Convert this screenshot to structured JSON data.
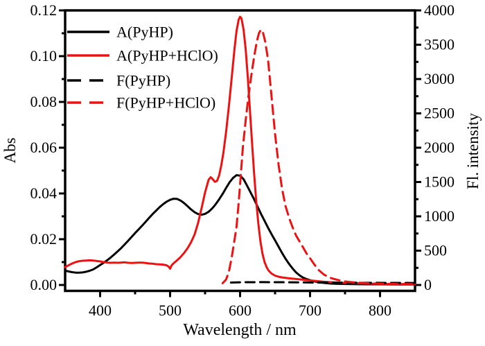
{
  "figure": {
    "background": "#ffffff"
  },
  "chart_data": {
    "type": "line",
    "title": "",
    "xlabel": "Wavelength / nm",
    "ylabel_left": "Abs",
    "ylabel_right": "Fl. intensity",
    "x_range": [
      350,
      850
    ],
    "y_left_range": [
      0,
      0.12
    ],
    "y_right_range": [
      0,
      4000
    ],
    "grid": false,
    "legend_position": "top-left",
    "frame": "full-box",
    "colors": {
      "black": "#000000",
      "red": "#ee1111"
    },
    "x_ticks": {
      "values": [
        400,
        500,
        600,
        700,
        800
      ],
      "labels": [
        "400",
        "500",
        "600",
        "700",
        "800"
      ],
      "minor": [
        450,
        550,
        650,
        750
      ]
    },
    "y_left_ticks": {
      "values": [
        0,
        0.02,
        0.04,
        0.06,
        0.08,
        0.1,
        0.12
      ],
      "labels": [
        "0.00",
        "0.02",
        "0.04",
        "0.06",
        "0.08",
        "0.10",
        "0.12"
      ],
      "minor": [
        0.01,
        0.03,
        0.05,
        0.07,
        0.09,
        0.11
      ]
    },
    "y_right_ticks": {
      "values": [
        0,
        500,
        1000,
        1500,
        2000,
        2500,
        3000,
        3500,
        4000
      ],
      "labels": [
        "0",
        "500",
        "1000",
        "1500",
        "2000",
        "2500",
        "3000",
        "3500",
        "4000"
      ],
      "minor": [
        250,
        750,
        1250,
        1750,
        2250,
        2750,
        3250,
        3750
      ]
    },
    "series": [
      {
        "name": "A(PyHP)",
        "axis": "left",
        "color": "#000000",
        "style": "solid",
        "points": [
          [
            350,
            0.0063
          ],
          [
            355,
            0.0059
          ],
          [
            360,
            0.0056
          ],
          [
            365,
            0.0054
          ],
          [
            370,
            0.0054
          ],
          [
            375,
            0.0055
          ],
          [
            380,
            0.0058
          ],
          [
            385,
            0.0062
          ],
          [
            390,
            0.0068
          ],
          [
            395,
            0.0077
          ],
          [
            400,
            0.0087
          ],
          [
            405,
            0.0097
          ],
          [
            410,
            0.0108
          ],
          [
            415,
            0.012
          ],
          [
            420,
            0.0133
          ],
          [
            425,
            0.0147
          ],
          [
            430,
            0.0161
          ],
          [
            435,
            0.0177
          ],
          [
            440,
            0.0193
          ],
          [
            445,
            0.021
          ],
          [
            450,
            0.0227
          ],
          [
            455,
            0.0243
          ],
          [
            460,
            0.0259
          ],
          [
            465,
            0.0276
          ],
          [
            470,
            0.0293
          ],
          [
            475,
            0.031
          ],
          [
            480,
            0.0325
          ],
          [
            485,
            0.034
          ],
          [
            490,
            0.0353
          ],
          [
            495,
            0.0364
          ],
          [
            500,
            0.0372
          ],
          [
            505,
            0.0377
          ],
          [
            510,
            0.0376
          ],
          [
            515,
            0.0369
          ],
          [
            520,
            0.0358
          ],
          [
            525,
            0.0344
          ],
          [
            530,
            0.033
          ],
          [
            535,
            0.0318
          ],
          [
            540,
            0.031
          ],
          [
            545,
            0.0307
          ],
          [
            550,
            0.0311
          ],
          [
            555,
            0.032
          ],
          [
            560,
            0.0334
          ],
          [
            565,
            0.0352
          ],
          [
            570,
            0.0374
          ],
          [
            575,
            0.0398
          ],
          [
            580,
            0.0424
          ],
          [
            585,
            0.0449
          ],
          [
            590,
            0.0468
          ],
          [
            595,
            0.048
          ],
          [
            600,
            0.0478
          ],
          [
            605,
            0.0462
          ],
          [
            610,
            0.0434
          ],
          [
            615,
            0.0405
          ],
          [
            620,
            0.0375
          ],
          [
            625,
            0.0342
          ],
          [
            630,
            0.031
          ],
          [
            635,
            0.028
          ],
          [
            640,
            0.025
          ],
          [
            645,
            0.0222
          ],
          [
            650,
            0.0195
          ],
          [
            655,
            0.0167
          ],
          [
            660,
            0.014
          ],
          [
            665,
            0.0115
          ],
          [
            670,
            0.0092
          ],
          [
            675,
            0.0072
          ],
          [
            680,
            0.0055
          ],
          [
            685,
            0.0042
          ],
          [
            690,
            0.0032
          ],
          [
            695,
            0.0026
          ],
          [
            700,
            0.0021
          ],
          [
            710,
            0.0013
          ],
          [
            720,
            0.0009
          ],
          [
            730,
            0.0006
          ],
          [
            740,
            0.0005
          ],
          [
            760,
            0.0004
          ],
          [
            780,
            0.0003
          ],
          [
            800,
            0.0003
          ],
          [
            825,
            0.0002
          ],
          [
            850,
            0.0002
          ]
        ]
      },
      {
        "name": "A(PyHP+HClO)",
        "axis": "left",
        "color": "#ee1111",
        "style": "solid",
        "points": [
          [
            350,
            0.0078
          ],
          [
            355,
            0.0086
          ],
          [
            360,
            0.0094
          ],
          [
            365,
            0.01
          ],
          [
            370,
            0.0104
          ],
          [
            375,
            0.0106
          ],
          [
            380,
            0.0107
          ],
          [
            385,
            0.0108
          ],
          [
            390,
            0.0107
          ],
          [
            395,
            0.0105
          ],
          [
            400,
            0.0103
          ],
          [
            405,
            0.01
          ],
          [
            410,
            0.0098
          ],
          [
            415,
            0.0097
          ],
          [
            420,
            0.0098
          ],
          [
            425,
            0.0097
          ],
          [
            430,
            0.0098
          ],
          [
            435,
            0.0099
          ],
          [
            440,
            0.0097
          ],
          [
            445,
            0.0096
          ],
          [
            450,
            0.0097
          ],
          [
            455,
            0.0098
          ],
          [
            460,
            0.0098
          ],
          [
            465,
            0.0096
          ],
          [
            470,
            0.0094
          ],
          [
            475,
            0.0093
          ],
          [
            480,
            0.0091
          ],
          [
            485,
            0.009
          ],
          [
            490,
            0.0089
          ],
          [
            495,
            0.0086
          ],
          [
            498,
            0.008
          ],
          [
            500,
            0.0071
          ],
          [
            502,
            0.0085
          ],
          [
            505,
            0.0095
          ],
          [
            510,
            0.0108
          ],
          [
            515,
            0.0122
          ],
          [
            520,
            0.014
          ],
          [
            525,
            0.0161
          ],
          [
            530,
            0.0187
          ],
          [
            535,
            0.0221
          ],
          [
            540,
            0.0271
          ],
          [
            545,
            0.0335
          ],
          [
            550,
            0.0405
          ],
          [
            555,
            0.046
          ],
          [
            558,
            0.0471
          ],
          [
            561,
            0.0462
          ],
          [
            564,
            0.0451
          ],
          [
            567,
            0.0455
          ],
          [
            570,
            0.0478
          ],
          [
            573,
            0.052
          ],
          [
            576,
            0.0575
          ],
          [
            580,
            0.0668
          ],
          [
            584,
            0.078
          ],
          [
            588,
            0.0905
          ],
          [
            592,
            0.103
          ],
          [
            595,
            0.111
          ],
          [
            598,
            0.116
          ],
          [
            600,
            0.1172
          ],
          [
            602,
            0.1165
          ],
          [
            605,
            0.1115
          ],
          [
            608,
            0.103
          ],
          [
            611,
            0.091
          ],
          [
            614,
            0.077
          ],
          [
            617,
            0.0625
          ],
          [
            620,
            0.049
          ],
          [
            623,
            0.037
          ],
          [
            626,
            0.027
          ],
          [
            629,
            0.0192
          ],
          [
            632,
            0.0137
          ],
          [
            635,
            0.01
          ],
          [
            638,
            0.0077
          ],
          [
            641,
            0.0062
          ],
          [
            645,
            0.005
          ],
          [
            650,
            0.0041
          ],
          [
            655,
            0.0036
          ],
          [
            660,
            0.0033
          ],
          [
            670,
            0.0029
          ],
          [
            680,
            0.0026
          ],
          [
            690,
            0.0023
          ],
          [
            700,
            0.002
          ],
          [
            710,
            0.0017
          ],
          [
            720,
            0.0014
          ],
          [
            730,
            0.0012
          ],
          [
            740,
            0.001
          ],
          [
            760,
            0.0008
          ],
          [
            780,
            0.0006
          ],
          [
            800,
            0.0005
          ],
          [
            825,
            0.0004
          ],
          [
            850,
            0.0004
          ]
        ]
      },
      {
        "name": "F(PyHP)",
        "axis": "right",
        "color": "#000000",
        "style": "dashed",
        "points": [
          [
            587,
            35
          ],
          [
            595,
            38
          ],
          [
            610,
            40
          ],
          [
            630,
            41
          ],
          [
            650,
            40
          ],
          [
            670,
            39
          ],
          [
            690,
            37
          ],
          [
            710,
            35
          ],
          [
            730,
            34
          ],
          [
            750,
            33
          ],
          [
            770,
            32
          ],
          [
            790,
            31
          ],
          [
            810,
            30
          ],
          [
            830,
            30
          ],
          [
            850,
            29
          ]
        ]
      },
      {
        "name": "F(PyHP+HClO)",
        "axis": "right",
        "color": "#ee1111",
        "style": "dashed",
        "points": [
          [
            575,
            25
          ],
          [
            580,
            80
          ],
          [
            584,
            190
          ],
          [
            588,
            400
          ],
          [
            592,
            650
          ],
          [
            595,
            850
          ],
          [
            598,
            1200
          ],
          [
            601,
            1600
          ],
          [
            604,
            2000
          ],
          [
            608,
            2400
          ],
          [
            612,
            2750
          ],
          [
            616,
            3050
          ],
          [
            620,
            3320
          ],
          [
            624,
            3550
          ],
          [
            627,
            3670
          ],
          [
            630,
            3720
          ],
          [
            633,
            3670
          ],
          [
            636,
            3540
          ],
          [
            640,
            3280
          ],
          [
            645,
            2750
          ],
          [
            650,
            2200
          ],
          [
            655,
            1750
          ],
          [
            660,
            1400
          ],
          [
            665,
            1150
          ],
          [
            670,
            980
          ],
          [
            675,
            840
          ],
          [
            680,
            720
          ],
          [
            687,
            600
          ],
          [
            695,
            460
          ],
          [
            700,
            390
          ],
          [
            706,
            300
          ],
          [
            712,
            220
          ],
          [
            720,
            150
          ],
          [
            730,
            100
          ],
          [
            740,
            72
          ],
          [
            750,
            52
          ],
          [
            760,
            40
          ],
          [
            775,
            30
          ],
          [
            790,
            22
          ],
          [
            805,
            18
          ],
          [
            825,
            14
          ],
          [
            850,
            12
          ]
        ]
      }
    ]
  }
}
